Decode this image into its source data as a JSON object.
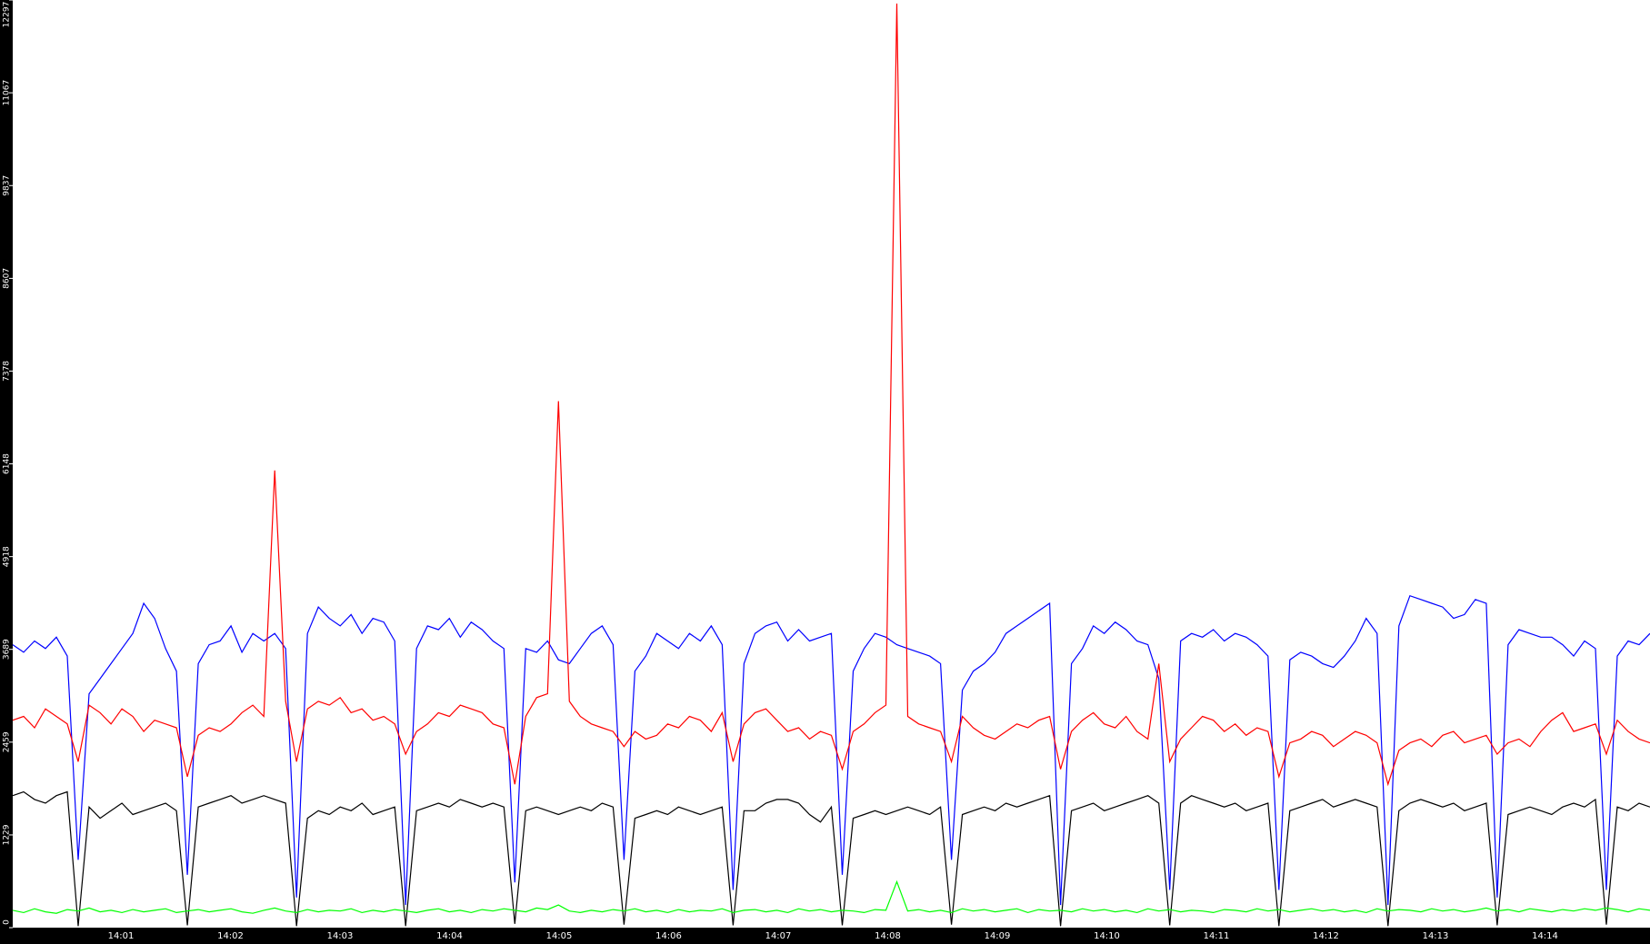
{
  "chart_data": {
    "type": "line",
    "x_labels": [
      "14:01",
      "14:02",
      "14:03",
      "14:04",
      "14:05",
      "14:06",
      "14:07",
      "14:08",
      "14:09",
      "14:10",
      "14:11",
      "14:12",
      "14:13",
      "14:14"
    ],
    "ylim": [
      0,
      12297
    ],
    "yticks": [
      0,
      1229,
      2459,
      3689,
      4918,
      6148,
      7378,
      8607,
      9837,
      11067,
      12297
    ],
    "series": [
      {
        "color": "#0000ff",
        "values": [
          3750,
          3650,
          3800,
          3700,
          3850,
          3600,
          900,
          3100,
          3300,
          3500,
          3700,
          3900,
          4300,
          4100,
          3700,
          3400,
          700,
          3500,
          3750,
          3800,
          4000,
          3650,
          3900,
          3800,
          3900,
          3700,
          400,
          3900,
          4250,
          4100,
          4000,
          4150,
          3900,
          4100,
          4050,
          3800,
          300,
          3700,
          4000,
          3950,
          4100,
          3850,
          4050,
          3950,
          3800,
          3700,
          600,
          3700,
          3650,
          3800,
          3550,
          3500,
          3700,
          3900,
          4000,
          3750,
          900,
          3400,
          3600,
          3900,
          3800,
          3700,
          3900,
          3800,
          4000,
          3750,
          500,
          3500,
          3900,
          4000,
          4050,
          3800,
          3950,
          3800,
          3850,
          3900,
          700,
          3400,
          3700,
          3900,
          3850,
          3750,
          3700,
          3650,
          3600,
          3500,
          900,
          3150,
          3400,
          3500,
          3650,
          3900,
          4000,
          4100,
          4200,
          4300,
          300,
          3500,
          3700,
          4000,
          3900,
          4050,
          3950,
          3800,
          3750,
          3300,
          500,
          3800,
          3900,
          3850,
          3950,
          3800,
          3900,
          3850,
          3750,
          3600,
          500,
          3550,
          3650,
          3600,
          3500,
          3450,
          3600,
          3800,
          4100,
          3900,
          300,
          4000,
          4400,
          4350,
          4300,
          4250,
          4100,
          4150,
          4350,
          4300,
          400,
          3750,
          3950,
          3900,
          3850,
          3850,
          3750,
          3600,
          3800,
          3700,
          500,
          3600,
          3800,
          3750,
          3900
        ]
      },
      {
        "color": "#ff0000",
        "values": [
          2750,
          2800,
          2650,
          2900,
          2800,
          2700,
          2200,
          2950,
          2850,
          2700,
          2900,
          2800,
          2600,
          2750,
          2700,
          2650,
          2000,
          2550,
          2650,
          2600,
          2700,
          2850,
          2950,
          2800,
          6060,
          3000,
          2200,
          2900,
          3000,
          2950,
          3050,
          2850,
          2900,
          2750,
          2800,
          2700,
          2300,
          2600,
          2700,
          2850,
          2800,
          2950,
          2900,
          2850,
          2700,
          2650,
          1900,
          2800,
          3050,
          3100,
          6980,
          3000,
          2800,
          2700,
          2650,
          2600,
          2400,
          2600,
          2500,
          2550,
          2700,
          2650,
          2800,
          2750,
          2600,
          2850,
          2200,
          2700,
          2850,
          2900,
          2750,
          2600,
          2650,
          2500,
          2600,
          2550,
          2100,
          2600,
          2700,
          2850,
          2950,
          12250,
          2800,
          2700,
          2650,
          2600,
          2200,
          2800,
          2650,
          2550,
          2500,
          2600,
          2700,
          2650,
          2750,
          2800,
          2100,
          2600,
          2750,
          2850,
          2700,
          2650,
          2800,
          2600,
          2500,
          3500,
          2200,
          2500,
          2650,
          2800,
          2750,
          2600,
          2700,
          2550,
          2650,
          2600,
          2000,
          2450,
          2500,
          2600,
          2550,
          2400,
          2500,
          2600,
          2550,
          2450,
          1900,
          2350,
          2450,
          2500,
          2400,
          2550,
          2600,
          2450,
          2500,
          2550,
          2300,
          2450,
          2500,
          2400,
          2600,
          2750,
          2850,
          2600,
          2650,
          2700,
          2300,
          2750,
          2600,
          2500,
          2450
        ]
      },
      {
        "color": "#000000",
        "values": [
          1750,
          1800,
          1700,
          1650,
          1750,
          1800,
          20,
          1600,
          1450,
          1550,
          1650,
          1500,
          1550,
          1600,
          1650,
          1550,
          30,
          1600,
          1650,
          1700,
          1750,
          1650,
          1700,
          1750,
          1700,
          1650,
          20,
          1450,
          1550,
          1500,
          1600,
          1550,
          1650,
          1500,
          1550,
          1600,
          20,
          1550,
          1600,
          1650,
          1600,
          1700,
          1650,
          1600,
          1650,
          1600,
          50,
          1550,
          1600,
          1550,
          1500,
          1550,
          1600,
          1550,
          1650,
          1600,
          40,
          1450,
          1500,
          1550,
          1500,
          1600,
          1550,
          1500,
          1550,
          1600,
          30,
          1550,
          1550,
          1650,
          1700,
          1700,
          1650,
          1500,
          1400,
          1600,
          30,
          1450,
          1500,
          1550,
          1500,
          1550,
          1600,
          1550,
          1500,
          1600,
          40,
          1500,
          1550,
          1600,
          1550,
          1650,
          1600,
          1650,
          1700,
          1750,
          20,
          1550,
          1600,
          1650,
          1550,
          1600,
          1650,
          1700,
          1750,
          1650,
          30,
          1650,
          1750,
          1700,
          1650,
          1600,
          1650,
          1550,
          1600,
          1650,
          20,
          1550,
          1600,
          1650,
          1700,
          1600,
          1650,
          1700,
          1650,
          1600,
          20,
          1550,
          1650,
          1700,
          1650,
          1600,
          1650,
          1550,
          1600,
          1650,
          30,
          1500,
          1550,
          1600,
          1550,
          1500,
          1600,
          1650,
          1600,
          1700,
          40,
          1600,
          1550,
          1650,
          1600
        ]
      },
      {
        "color": "#00ff00",
        "values": [
          230,
          200,
          250,
          210,
          190,
          240,
          220,
          260,
          210,
          230,
          200,
          240,
          210,
          230,
          250,
          200,
          220,
          240,
          210,
          230,
          250,
          210,
          190,
          230,
          260,
          220,
          200,
          240,
          210,
          230,
          220,
          250,
          200,
          230,
          210,
          240,
          220,
          200,
          230,
          250,
          210,
          230,
          200,
          240,
          220,
          250,
          230,
          210,
          260,
          240,
          300,
          220,
          200,
          230,
          210,
          240,
          220,
          250,
          210,
          230,
          200,
          240,
          210,
          230,
          220,
          250,
          200,
          230,
          240,
          210,
          230,
          200,
          250,
          220,
          240,
          210,
          230,
          220,
          200,
          240,
          230,
          610,
          220,
          240,
          210,
          230,
          200,
          250,
          220,
          240,
          210,
          230,
          250,
          200,
          240,
          220,
          230,
          210,
          250,
          220,
          240,
          210,
          230,
          200,
          250,
          220,
          240,
          210,
          230,
          220,
          200,
          240,
          230,
          210,
          250,
          220,
          240,
          210,
          230,
          250,
          220,
          240,
          210,
          230,
          200,
          250,
          220,
          240,
          230,
          210,
          250,
          220,
          240,
          210,
          230,
          260,
          220,
          240,
          210,
          250,
          230,
          210,
          240,
          220,
          250,
          230,
          260,
          240,
          210,
          250,
          230
        ]
      }
    ]
  }
}
